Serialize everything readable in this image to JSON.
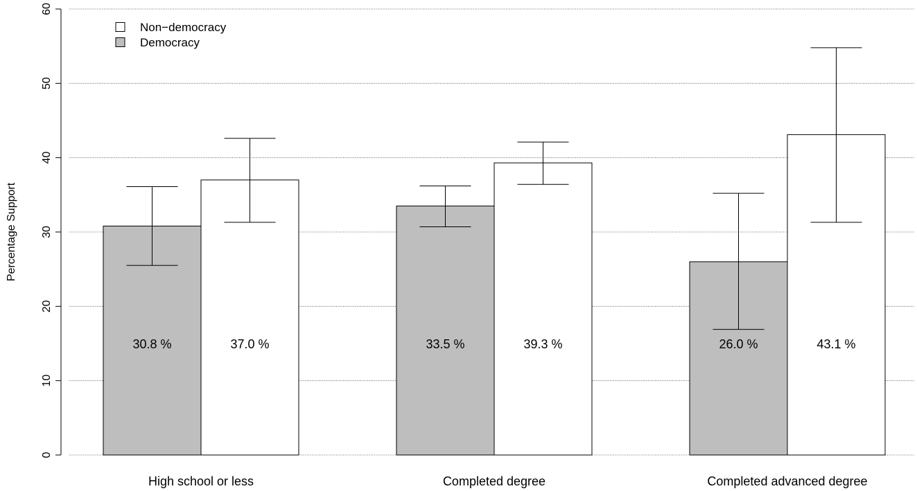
{
  "chart_data": {
    "type": "bar",
    "title": "",
    "xlabel": "",
    "ylabel": "Percentage Support",
    "ylim": [
      0,
      60
    ],
    "yticks": [
      0,
      10,
      20,
      30,
      40,
      50,
      60
    ],
    "grid": "horizontal-dotted",
    "legend_placement": "top-left",
    "categories": [
      "High school or less",
      "Completed degree",
      "Completed advanced degree"
    ],
    "series": [
      {
        "name": "Democracy",
        "color": "#bebebe",
        "values": [
          30.8,
          33.5,
          26.0
        ],
        "labels": [
          "30.8 %",
          "33.5 %",
          "26.0 %"
        ],
        "ci_low": [
          25.5,
          30.7,
          16.9
        ],
        "ci_high": [
          36.1,
          36.2,
          35.2
        ]
      },
      {
        "name": "Non−democracy",
        "color": "#ffffff",
        "values": [
          37.0,
          39.3,
          43.1
        ],
        "labels": [
          "37.0 %",
          "39.3 %",
          "43.1 %"
        ],
        "ci_low": [
          31.3,
          36.4,
          31.3
        ],
        "ci_high": [
          42.6,
          42.1,
          54.8
        ]
      }
    ],
    "legend_order": [
      1,
      0
    ]
  }
}
